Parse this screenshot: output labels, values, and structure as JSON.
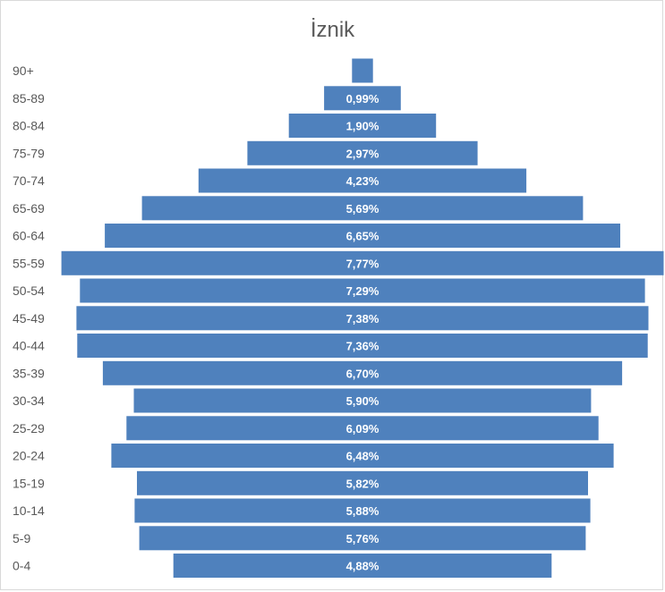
{
  "chart_data": {
    "type": "bar",
    "title": "İznik",
    "orientation": "horizontal-centered",
    "categories": [
      "90+",
      "85-89",
      "80-84",
      "75-79",
      "70-74",
      "65-69",
      "60-64",
      "55-59",
      "50-54",
      "45-49",
      "40-44",
      "35-39",
      "30-34",
      "25-29",
      "20-24",
      "15-19",
      "10-14",
      "5-9",
      "0-4"
    ],
    "values": [
      0.27,
      0.99,
      1.9,
      2.97,
      4.23,
      5.69,
      6.65,
      7.77,
      7.29,
      7.38,
      7.36,
      6.7,
      5.9,
      6.09,
      6.48,
      5.82,
      5.88,
      5.76,
      4.88
    ],
    "labels": [
      "",
      "0,99%",
      "1,90%",
      "2,97%",
      "4,23%",
      "5,69%",
      "6,65%",
      "7,77%",
      "7,29%",
      "7,38%",
      "7,36%",
      "6,70%",
      "5,90%",
      "6,09%",
      "6,48%",
      "5,82%",
      "5,88%",
      "5,76%",
      "4,88%"
    ],
    "unit": "%",
    "bar_color": "#4f81bd",
    "grid": false,
    "legend": "none"
  }
}
